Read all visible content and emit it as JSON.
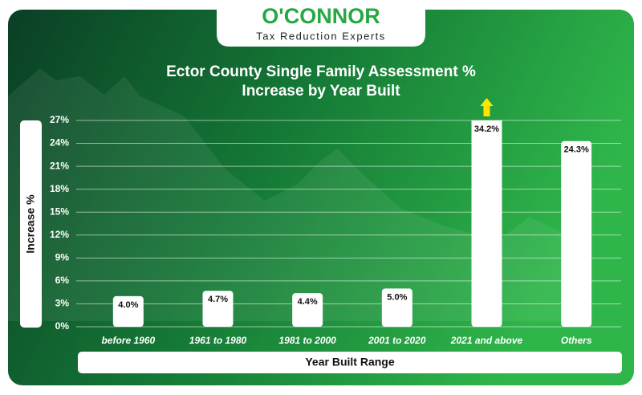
{
  "logo": {
    "name": "O'CONNOR",
    "tagline": "Tax Reduction Experts"
  },
  "chart_data": {
    "type": "bar",
    "title": "Ector County Single Family Assessment % Increase by Year Built",
    "x_label": "Year Built Range",
    "y_label": "Increase %",
    "categories": [
      "before 1960",
      "1961 to 1980",
      "1981 to 2000",
      "2001 to 2020",
      "2021 and above",
      "Others"
    ],
    "values": [
      4.0,
      4.7,
      4.4,
      5.0,
      34.2,
      24.3
    ],
    "value_labels": [
      "4.0%",
      "4.7%",
      "4.4%",
      "5.0%",
      "34.2%",
      "24.3%"
    ],
    "color": "#ffffff",
    "ylim": [
      0,
      27
    ],
    "yticks": [
      {
        "value": 0,
        "label": "0%"
      },
      {
        "value": 3,
        "label": "3%"
      },
      {
        "value": 6,
        "label": "6%"
      },
      {
        "value": 9,
        "label": "9%"
      },
      {
        "value": 12,
        "label": "12%"
      },
      {
        "value": 15,
        "label": "15%"
      },
      {
        "value": 18,
        "label": "18%"
      },
      {
        "value": 21,
        "label": "21%"
      },
      {
        "value": 24,
        "label": "24%"
      },
      {
        "value": 27,
        "label": "27%"
      }
    ],
    "grid": true
  }
}
